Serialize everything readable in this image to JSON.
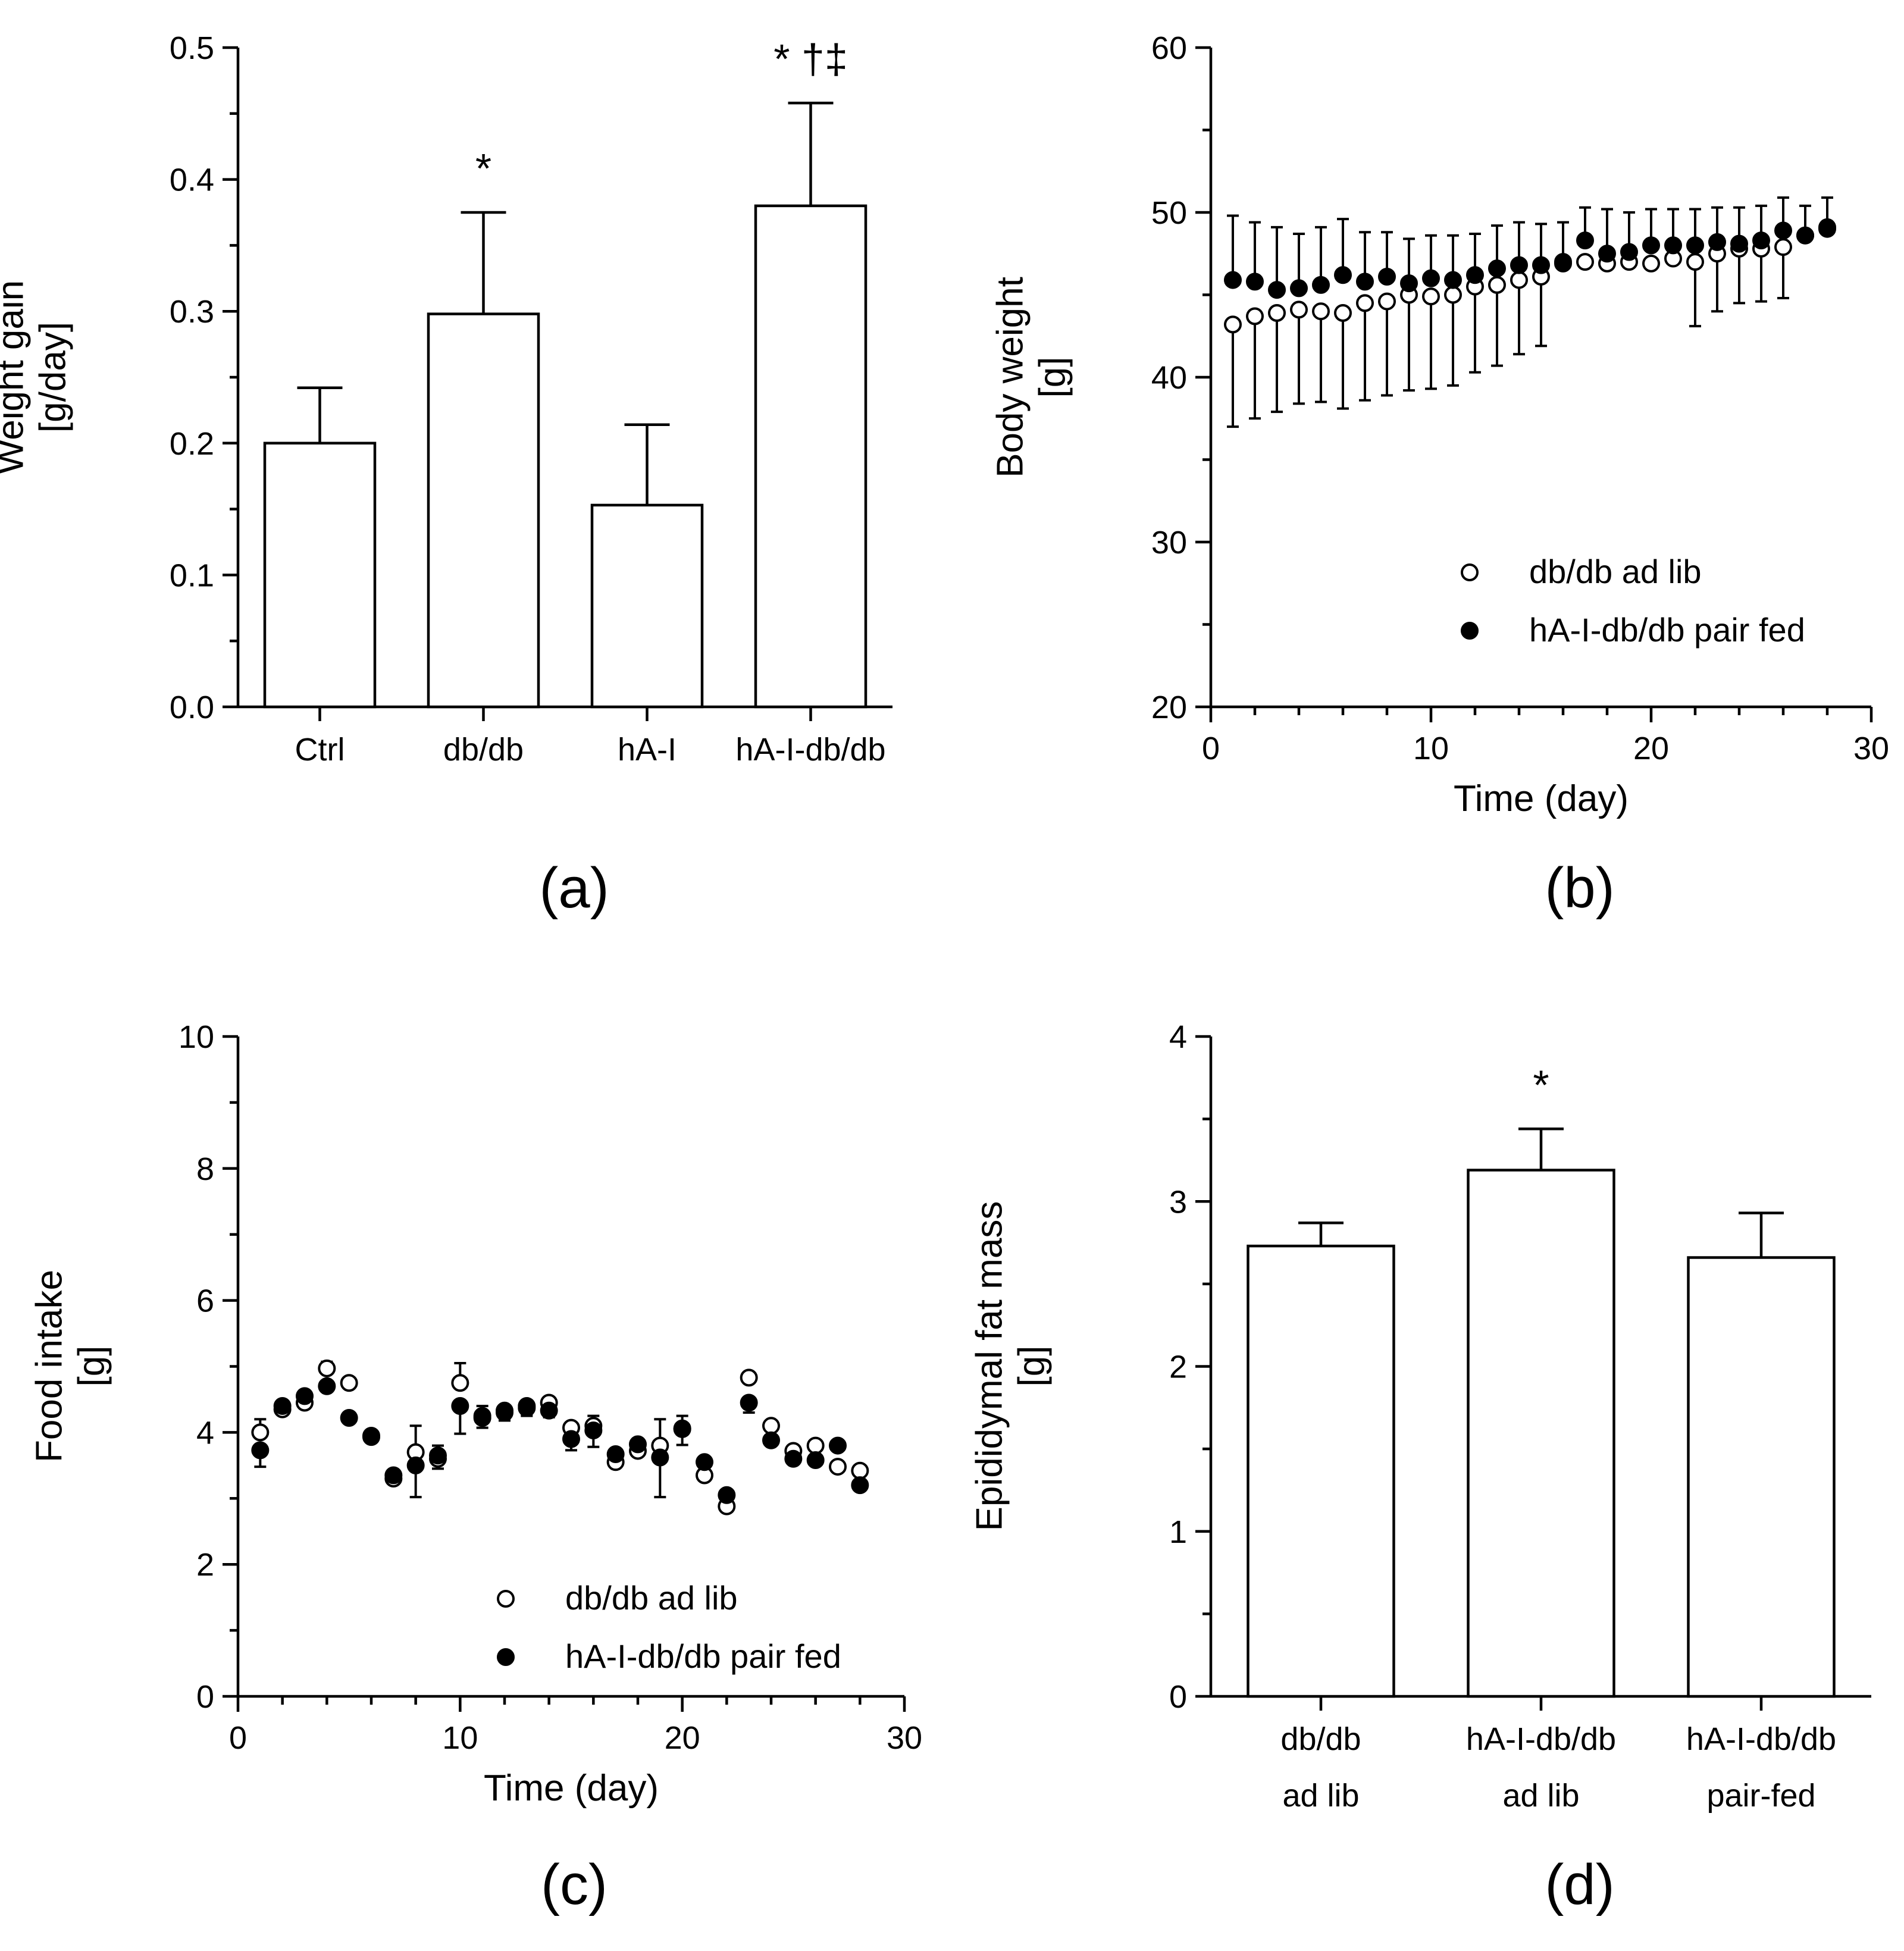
{
  "chart_data": [
    {
      "panel_label": "(a)",
      "type": "bar",
      "ylabel": [
        "Weight gain",
        "[g/day]"
      ],
      "xlabel": "",
      "ylim": [
        0,
        0.5
      ],
      "yticks": [
        "0.0",
        "0.1",
        "0.2",
        "0.3",
        "0.4",
        "0.5"
      ],
      "categories": [
        "Ctrl",
        "db/db",
        "hA-I",
        "hA-I-db/db"
      ],
      "values": [
        0.2,
        0.298,
        0.153,
        0.38
      ],
      "errors": [
        0.042,
        0.077,
        0.061,
        0.078
      ],
      "annotations": [
        "",
        "*",
        "",
        "* †‡"
      ]
    },
    {
      "panel_label": "(b)",
      "type": "scatter",
      "ylabel": [
        "Body weight",
        "[g]"
      ],
      "xlabel": "Time (day)",
      "xlim": [
        0,
        30
      ],
      "ylim": [
        20,
        60
      ],
      "xticks": [
        "0",
        "10",
        "20",
        "30"
      ],
      "yticks": [
        "20",
        "30",
        "40",
        "50",
        "60"
      ],
      "legend": [
        "db/db ad lib",
        "hA-I-db/db pair fed"
      ],
      "legend_position": "bottom-right",
      "x": [
        1,
        2,
        3,
        4,
        5,
        6,
        7,
        8,
        9,
        10,
        11,
        12,
        13,
        14,
        15,
        16,
        17,
        18,
        19,
        20,
        21,
        22,
        23,
        24,
        25,
        26,
        27,
        28
      ],
      "series": [
        {
          "name": "db/db ad lib",
          "marker": "open-circle",
          "values": [
            43.2,
            43.7,
            43.9,
            44.1,
            44.0,
            43.9,
            44.5,
            44.6,
            45.0,
            44.9,
            45.0,
            45.5,
            45.6,
            45.9,
            46.1,
            46.9,
            47.0,
            46.9,
            47.0,
            46.9,
            47.2,
            47.0,
            47.5,
            47.8,
            47.8,
            47.9,
            48.6,
            49.0
          ],
          "errors": [
            6.2,
            6.2,
            6.0,
            5.7,
            5.5,
            5.8,
            5.9,
            5.7,
            5.8,
            5.6,
            5.5,
            5.2,
            4.9,
            4.5,
            4.2,
            0,
            0,
            0,
            0,
            0,
            0,
            3.9,
            3.5,
            3.3,
            3.2,
            3.1,
            0,
            0
          ]
        },
        {
          "name": "hA-I-db/db pair fed",
          "marker": "filled-circle",
          "values": [
            45.9,
            45.8,
            45.3,
            45.4,
            45.6,
            46.2,
            45.8,
            46.1,
            45.7,
            46.0,
            45.9,
            46.2,
            46.6,
            46.8,
            46.8,
            47.0,
            48.3,
            47.5,
            47.6,
            48.0,
            48.0,
            48.0,
            48.2,
            48.1,
            48.3,
            48.9,
            48.6,
            49.1
          ],
          "errors": [
            3.9,
            3.6,
            3.8,
            3.3,
            3.5,
            3.4,
            3.0,
            2.7,
            2.7,
            2.6,
            2.7,
            2.5,
            2.6,
            2.6,
            2.5,
            2.4,
            2.0,
            2.7,
            2.4,
            2.2,
            2.2,
            2.2,
            2.1,
            2.2,
            2.1,
            2.0,
            1.8,
            1.8
          ]
        }
      ]
    },
    {
      "panel_label": "(c)",
      "type": "scatter",
      "ylabel": [
        "Food intake",
        "[g]"
      ],
      "xlabel": "Time (day)",
      "xlim": [
        0,
        30
      ],
      "ylim": [
        0,
        10
      ],
      "xticks": [
        "0",
        "10",
        "20",
        "30"
      ],
      "yticks": [
        "0",
        "2",
        "4",
        "6",
        "8",
        "10"
      ],
      "legend": [
        "db/db ad lib",
        "hA-I-db/db pair fed"
      ],
      "legend_position": "bottom-right",
      "x": [
        1,
        2,
        3,
        4,
        5,
        6,
        7,
        8,
        9,
        10,
        11,
        12,
        13,
        14,
        15,
        16,
        17,
        18,
        19,
        20,
        21,
        22,
        23,
        24,
        25,
        26,
        27,
        28
      ],
      "series": [
        {
          "name": "db/db ad lib",
          "marker": "open-circle",
          "values": [
            4.0,
            4.35,
            4.45,
            4.97,
            4.75,
            3.93,
            3.3,
            3.7,
            3.6,
            4.75,
            4.25,
            4.3,
            4.4,
            4.45,
            4.07,
            4.1,
            3.55,
            3.72,
            3.8,
            4.05,
            3.35,
            2.88,
            4.83,
            4.1,
            3.72,
            3.8,
            3.48,
            3.42
          ],
          "errors": [
            0.2,
            0,
            0,
            0.1,
            0,
            0,
            0,
            0.4,
            0.2,
            0.3,
            0.15,
            0,
            0,
            0,
            0,
            0.15,
            0.1,
            0,
            0.4,
            0.2,
            0,
            0,
            0,
            0,
            0,
            0,
            0,
            0
          ],
          "error_direction": "up"
        },
        {
          "name": "hA-I-db/db pair fed",
          "marker": "filled-circle",
          "values": [
            3.73,
            4.4,
            4.55,
            4.7,
            4.22,
            3.95,
            3.35,
            3.5,
            3.65,
            4.4,
            4.22,
            4.33,
            4.37,
            4.33,
            3.9,
            4.03,
            3.67,
            3.82,
            3.62,
            4.06,
            3.55,
            3.05,
            4.45,
            3.88,
            3.6,
            3.58,
            3.8,
            3.2
          ],
          "errors": [
            0.25,
            0,
            0,
            0,
            0,
            0,
            0,
            0.48,
            0.2,
            0.42,
            0.15,
            0.15,
            0.12,
            0.1,
            0.17,
            0.25,
            0.12,
            0,
            0.6,
            0.25,
            0,
            0,
            0.15,
            0,
            0,
            0,
            0,
            0
          ],
          "error_direction": "down"
        }
      ]
    },
    {
      "panel_label": "(d)",
      "type": "bar",
      "ylabel": [
        "Epididymal fat mass",
        "[g]"
      ],
      "xlabel": "",
      "ylim": [
        0,
        4
      ],
      "yticks": [
        "0",
        "1",
        "2",
        "3",
        "4"
      ],
      "categories": [
        [
          "db/db",
          "ad lib"
        ],
        [
          "hA-I-db/db",
          "ad lib"
        ],
        [
          "hA-I-db/db",
          "pair-fed"
        ]
      ],
      "values": [
        2.73,
        3.19,
        2.66
      ],
      "errors": [
        0.14,
        0.25,
        0.27
      ],
      "annotations": [
        "",
        "*",
        ""
      ]
    }
  ]
}
